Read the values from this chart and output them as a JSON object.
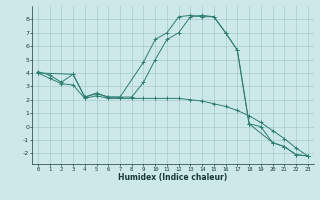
{
  "xlabel": "Humidex (Indice chaleur)",
  "background_color": "#cde8e8",
  "grid_color": "#aacccc",
  "line_color": "#2e7d72",
  "xlim": [
    -0.5,
    23.5
  ],
  "ylim": [
    -2.8,
    9.0
  ],
  "xticks": [
    0,
    1,
    2,
    3,
    4,
    5,
    6,
    7,
    8,
    9,
    10,
    11,
    12,
    13,
    14,
    15,
    16,
    17,
    18,
    19,
    20,
    21,
    22,
    23
  ],
  "yticks": [
    -2,
    -1,
    0,
    1,
    2,
    3,
    4,
    5,
    6,
    7,
    8
  ],
  "s1_x": [
    0,
    1,
    2,
    3,
    4,
    5,
    6,
    7,
    9,
    10,
    11,
    12,
    13,
    14,
    15,
    16,
    17,
    18,
    20,
    21,
    22,
    23
  ],
  "s1_y": [
    4.1,
    3.85,
    3.3,
    3.9,
    2.2,
    2.45,
    2.2,
    2.2,
    4.8,
    6.5,
    7.0,
    8.2,
    8.3,
    8.2,
    8.2,
    7.0,
    5.7,
    0.2,
    -1.2,
    -1.5,
    -2.1,
    -2.2
  ],
  "s2_x": [
    0,
    3,
    4,
    5,
    6,
    7,
    8,
    9,
    10,
    11,
    12,
    13,
    14,
    15,
    16,
    17,
    18,
    19,
    20,
    21,
    22,
    23
  ],
  "s2_y": [
    4.0,
    3.9,
    2.2,
    2.5,
    2.2,
    2.2,
    2.2,
    3.3,
    5.0,
    6.5,
    7.0,
    8.2,
    8.3,
    8.2,
    7.0,
    5.7,
    0.2,
    0.0,
    -1.2,
    -1.5,
    -2.1,
    -2.2
  ],
  "s3_x": [
    0,
    1,
    2,
    3,
    4,
    5,
    6,
    7,
    8,
    9,
    10,
    11,
    12,
    13,
    14,
    15,
    16,
    17,
    18,
    19,
    20,
    21,
    22,
    23
  ],
  "s3_y": [
    4.0,
    3.6,
    3.2,
    3.1,
    2.1,
    2.3,
    2.1,
    2.1,
    2.1,
    2.1,
    2.1,
    2.1,
    2.1,
    2.0,
    1.9,
    1.7,
    1.5,
    1.2,
    0.8,
    0.3,
    -0.3,
    -0.9,
    -1.6,
    -2.2
  ]
}
